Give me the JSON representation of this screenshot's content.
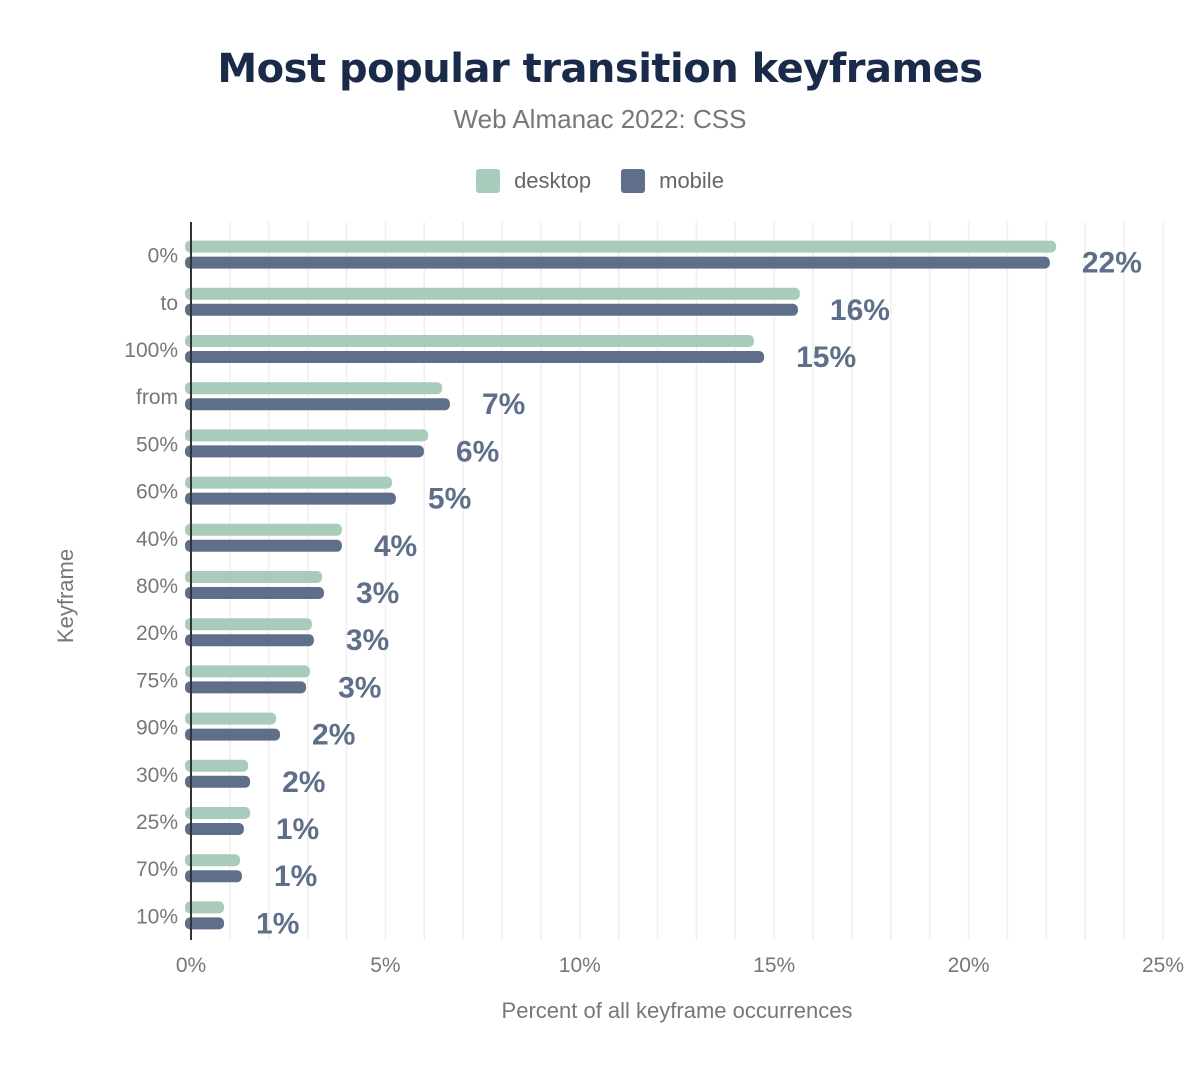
{
  "chart_data": {
    "type": "bar",
    "orientation": "horizontal",
    "title": "Most popular transition keyframes",
    "subtitle": "Web Almanac 2022: CSS",
    "xlabel": "Percent of all keyframe occurrences",
    "ylabel": "Keyframe",
    "xlim": [
      0,
      25
    ],
    "xticks": [
      "0%",
      "5%",
      "10%",
      "15%",
      "20%",
      "25%"
    ],
    "grid": true,
    "legend_position": "top",
    "categories": [
      "0%",
      "to",
      "100%",
      "from",
      "50%",
      "60%",
      "40%",
      "80%",
      "20%",
      "75%",
      "90%",
      "30%",
      "25%",
      "70%",
      "10%"
    ],
    "series": [
      {
        "name": "desktop",
        "color": "#a8cbbb",
        "values": [
          22.25,
          15.66,
          14.48,
          6.46,
          6.1,
          5.17,
          3.88,
          3.37,
          3.11,
          3.06,
          2.19,
          1.47,
          1.52,
          1.26,
          0.85
        ]
      },
      {
        "name": "mobile",
        "color": "#5f6f8a",
        "values": [
          22.09,
          15.61,
          14.74,
          6.66,
          5.99,
          5.27,
          3.88,
          3.42,
          3.16,
          2.96,
          2.29,
          1.52,
          1.36,
          1.31,
          0.85
        ]
      }
    ],
    "data_labels": [
      "22%",
      "16%",
      "15%",
      "7%",
      "6%",
      "5%",
      "4%",
      "3%",
      "3%",
      "3%",
      "2%",
      "2%",
      "1%",
      "1%",
      "1%"
    ]
  }
}
